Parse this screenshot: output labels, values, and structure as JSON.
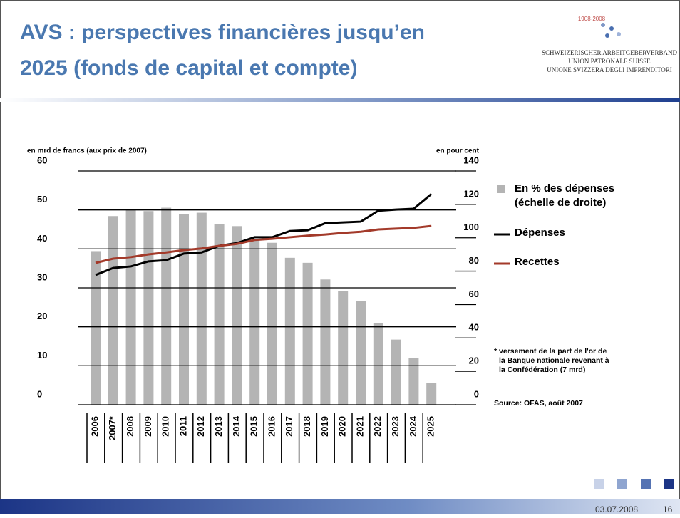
{
  "chart_data": {
    "type": "bar_line",
    "title_lines": [
      "AVS : perspectives financières jusqu’en",
      "2025 (fonds de capital et compte)"
    ],
    "logo": {
      "years": "1908-2008",
      "lines": [
        "SCHWEIZERISCHER ARBEITGEBERVERBAND",
        "UNION PATRONALE SUISSE",
        "UNIONE SVIZZERA DEGLI IMPRENDITORI"
      ]
    },
    "ylabel": "en mrd de francs (aux prix de 2007)",
    "y2label": "en pour cent",
    "categories": [
      "2006",
      "2007*",
      "2008",
      "2009",
      "2010",
      "2011",
      "2012",
      "2013",
      "2014",
      "2015",
      "2016",
      "2017",
      "2018",
      "2019",
      "2020",
      "2021",
      "2022",
      "2023",
      "2024",
      "2025"
    ],
    "series": [
      {
        "name": "En % des dépenses (échelle de droite)",
        "kind": "bar",
        "axis": "y2",
        "color": "#b4b4b4",
        "values": [
          92,
          113,
          117,
          116,
          118,
          114,
          115,
          108,
          107,
          99,
          97,
          88,
          85,
          75,
          68,
          62,
          49,
          39,
          28,
          13
        ]
      },
      {
        "name": "Dépenses",
        "kind": "line",
        "color": "#000000",
        "values": [
          33.3,
          35.1,
          35.5,
          36.8,
          37.1,
          38.8,
          39.1,
          40.8,
          41.5,
          43.0,
          43.0,
          44.6,
          44.8,
          46.6,
          46.8,
          47.0,
          49.8,
          50.1,
          50.3,
          54.1
        ]
      },
      {
        "name": "Recettes",
        "kind": "line",
        "color": "#a33a2a",
        "values": [
          36.4,
          37.5,
          37.9,
          38.6,
          39.1,
          39.7,
          40.1,
          40.8,
          41.3,
          42.3,
          42.6,
          43.0,
          43.4,
          43.7,
          44.1,
          44.4,
          45.0,
          45.2,
          45.4,
          45.9
        ]
      }
    ],
    "ylim": [
      0,
      60
    ],
    "yticks": [
      0,
      10,
      20,
      30,
      40,
      50,
      60
    ],
    "y2lim": [
      0,
      140
    ],
    "y2ticks": [
      0,
      20,
      40,
      60,
      80,
      100,
      120,
      140
    ],
    "grid": true,
    "footnote_lines": [
      "* versement de la part de l'or de",
      "la Banque nationale revenant à",
      "la Confédération (7 mrd)"
    ],
    "source": "Source: OFAS, août 2007",
    "footer": {
      "date": "03.07.2008",
      "page": "16"
    }
  }
}
